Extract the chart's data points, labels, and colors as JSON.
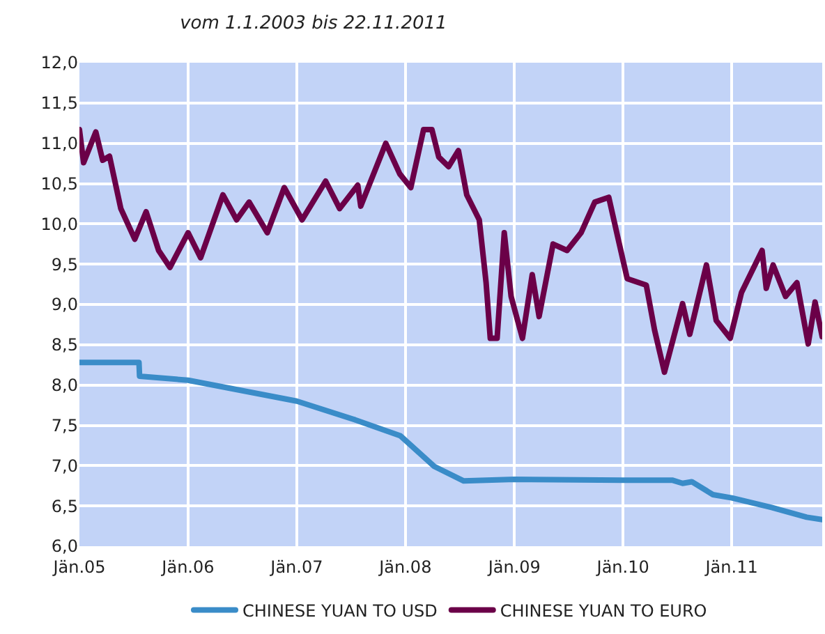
{
  "chart_data": {
    "type": "line",
    "title": "vom 1.1.2003 bis 22.11.2011",
    "xlim": [
      "2005-01-01",
      "2011-11-01"
    ],
    "xticks": [
      {
        "value": "2005-01-01",
        "label": "Jän.05"
      },
      {
        "value": "2006-01-01",
        "label": "Jän.06"
      },
      {
        "value": "2007-01-01",
        "label": "Jän.07"
      },
      {
        "value": "2008-01-01",
        "label": "Jän.08"
      },
      {
        "value": "2009-01-01",
        "label": "Jän.09"
      },
      {
        "value": "2010-01-01",
        "label": "Jän.10"
      },
      {
        "value": "2011-01-01",
        "label": "Jän.11"
      }
    ],
    "ylim": [
      6,
      12
    ],
    "yticks": [
      {
        "value": 6,
        "label": "6,0"
      },
      {
        "value": 6.5,
        "label": "6,5"
      },
      {
        "value": 7,
        "label": "7,0"
      },
      {
        "value": 7.5,
        "label": "7,5"
      },
      {
        "value": 8,
        "label": "8,0"
      },
      {
        "value": 8.5,
        "label": "8,5"
      },
      {
        "value": 9,
        "label": "9,0"
      },
      {
        "value": 9.5,
        "label": "9,5"
      },
      {
        "value": 10,
        "label": "10,0"
      },
      {
        "value": 10.5,
        "label": "10,5"
      },
      {
        "value": 11,
        "label": "11,0"
      },
      {
        "value": 11.5,
        "label": "11,5"
      },
      {
        "value": 12,
        "label": "12,0"
      }
    ],
    "grid": true,
    "legend": "bottom",
    "line_style": "solid",
    "marker": "none",
    "series": [
      {
        "name": "CHINESE YUAN TO USD",
        "color": "#3a8cc8",
        "x": [
          "2005-01-01",
          "2005-07-20",
          "2005-07-22",
          "2006-01-01",
          "2007-01-01",
          "2007-07-15",
          "2007-12-15",
          "2008-04-07",
          "2008-07-15",
          "2009-01-01",
          "2010-01-01",
          "2010-06-15",
          "2010-07-20",
          "2010-08-20",
          "2010-10-30",
          "2011-01-01",
          "2011-05-15",
          "2011-09-10",
          "2011-11-01"
        ],
        "values": [
          8.28,
          8.28,
          8.11,
          8.06,
          7.8,
          7.57,
          7.37,
          6.99,
          6.81,
          6.83,
          6.82,
          6.82,
          6.78,
          6.8,
          6.64,
          6.6,
          6.48,
          6.36,
          6.33
        ]
      },
      {
        "name": "CHINESE YUAN TO EURO",
        "color": "#6b0048",
        "x": [
          "2005-01-01",
          "2005-01-15",
          "2005-02-25",
          "2005-03-20",
          "2005-04-12",
          "2005-05-20",
          "2005-07-06",
          "2005-08-13",
          "2005-09-24",
          "2005-11-01",
          "2006-01-01",
          "2006-02-12",
          "2006-04-28",
          "2006-06-13",
          "2006-07-25",
          "2006-09-24",
          "2006-11-20",
          "2007-01-19",
          "2007-04-08",
          "2007-05-25",
          "2007-07-25",
          "2007-08-04",
          "2007-10-27",
          "2007-12-13",
          "2008-01-19",
          "2008-03-02",
          "2008-03-30",
          "2008-04-22",
          "2008-05-25",
          "2008-06-27",
          "2008-07-25",
          "2008-09-05",
          "2008-09-28",
          "2008-10-12",
          "2008-11-04",
          "2008-11-28",
          "2008-12-21",
          "2009-01-28",
          "2009-03-02",
          "2009-03-25",
          "2009-05-11",
          "2009-06-27",
          "2009-08-13",
          "2009-09-28",
          "2009-11-14",
          "2009-12-17",
          "2010-01-15",
          "2010-03-20",
          "2010-04-17",
          "2010-05-20",
          "2010-07-20",
          "2010-08-13",
          "2010-10-08",
          "2010-11-10",
          "2010-12-27",
          "2011-02-03",
          "2011-04-13",
          "2011-04-27",
          "2011-05-20",
          "2011-07-01",
          "2011-08-08",
          "2011-09-15",
          "2011-10-08",
          "2011-11-01"
        ],
        "values": [
          11.17,
          10.76,
          11.14,
          10.79,
          10.84,
          10.19,
          9.81,
          10.15,
          9.67,
          9.46,
          9.89,
          9.58,
          10.36,
          10.05,
          10.27,
          9.89,
          10.45,
          10.05,
          10.53,
          10.19,
          10.48,
          10.22,
          11.0,
          10.62,
          10.45,
          11.17,
          11.17,
          10.83,
          10.71,
          10.91,
          10.36,
          10.05,
          9.27,
          8.58,
          8.58,
          9.89,
          9.1,
          8.58,
          9.37,
          8.85,
          9.75,
          9.67,
          9.89,
          10.27,
          10.33,
          9.79,
          9.32,
          9.24,
          8.68,
          8.16,
          9.01,
          8.63,
          9.49,
          8.8,
          8.58,
          9.15,
          9.67,
          9.2,
          9.49,
          9.1,
          9.27,
          8.51,
          9.03,
          8.6
        ]
      }
    ]
  }
}
